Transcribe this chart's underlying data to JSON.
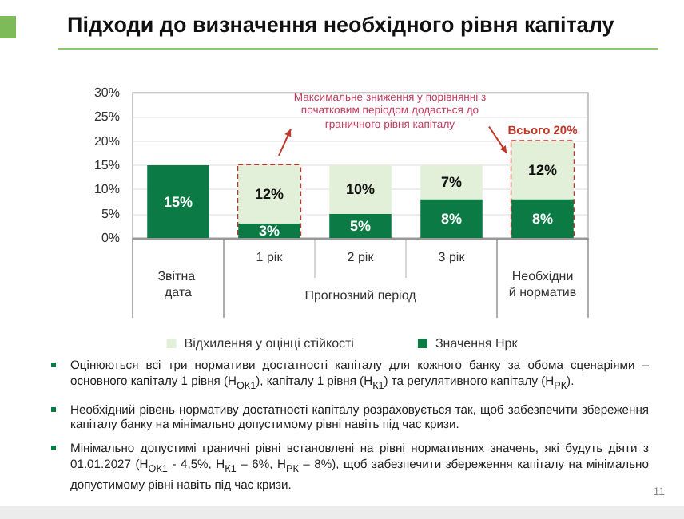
{
  "chart_data": {
    "type": "bar",
    "title": "Підходи до визначення необхідного рівня капіталу",
    "categories": [
      "Звітна дата",
      "1 рік",
      "2 рік",
      "3 рік",
      "Необхідний норматив"
    ],
    "series": [
      {
        "name": "Значення Нрк",
        "color": "#0b7a45",
        "values": [
          15,
          3,
          5,
          8,
          8
        ],
        "value_labels": [
          "15%",
          "3%",
          "5%",
          "8%",
          "8%"
        ]
      },
      {
        "name": "Відхилення у оцінці стійкості",
        "color": "#e2efd9",
        "values": [
          null,
          12,
          10,
          7,
          12
        ],
        "value_labels": [
          null,
          "12%",
          "10%",
          "7%",
          "12%"
        ]
      }
    ],
    "stacked": true,
    "grid": "y",
    "legend": "bottom",
    "ylim": [
      0,
      30
    ],
    "yticks": [
      {
        "value": 0,
        "label": "0%"
      },
      {
        "value": 5,
        "label": "5%"
      },
      {
        "value": 10,
        "label": "10%"
      },
      {
        "value": 15,
        "label": "15%"
      },
      {
        "value": 20,
        "label": "20%"
      },
      {
        "value": 25,
        "label": "25%"
      },
      {
        "value": 30,
        "label": "30%"
      }
    ],
    "annotations": [
      "Максимальне зниження у порівнянні з початковим періодом додасться до граничного рівня капіталу",
      {
        "text": "Всього 20%",
        "x": "Необхідний норматив",
        "y": 20
      },
      "Прогнозний період",
      "Оцінюються всі три нормативи достатності капіталу для кожного банку за обома сценаріями – основного капіталу 1 рівня (Н$_{ОК1}$), капіталу 1 рівня (Н$_{К1}$) та регулятивного капіталу (Н$_{РК}$).",
      "Необхідний рівень нормативу достатності капіталу розраховується так, щоб забезпечити збереження капіталу банку на мінімально допустимому рівні навіть під час кризи.",
      "Мінімально допустимі граничні рівні встановлені на рівні нормативних значень, які будуть діяти з 01.01.2027 (Н$_{ОК1}$ - 4,5%, Н$_{К1}$ – 6%, Н$_{РК}$ – 8%), щоб забезпечити збереження капіталу на мінімально допустимому рівні навіть під час кризи.",
      "11"
    ]
  }
}
